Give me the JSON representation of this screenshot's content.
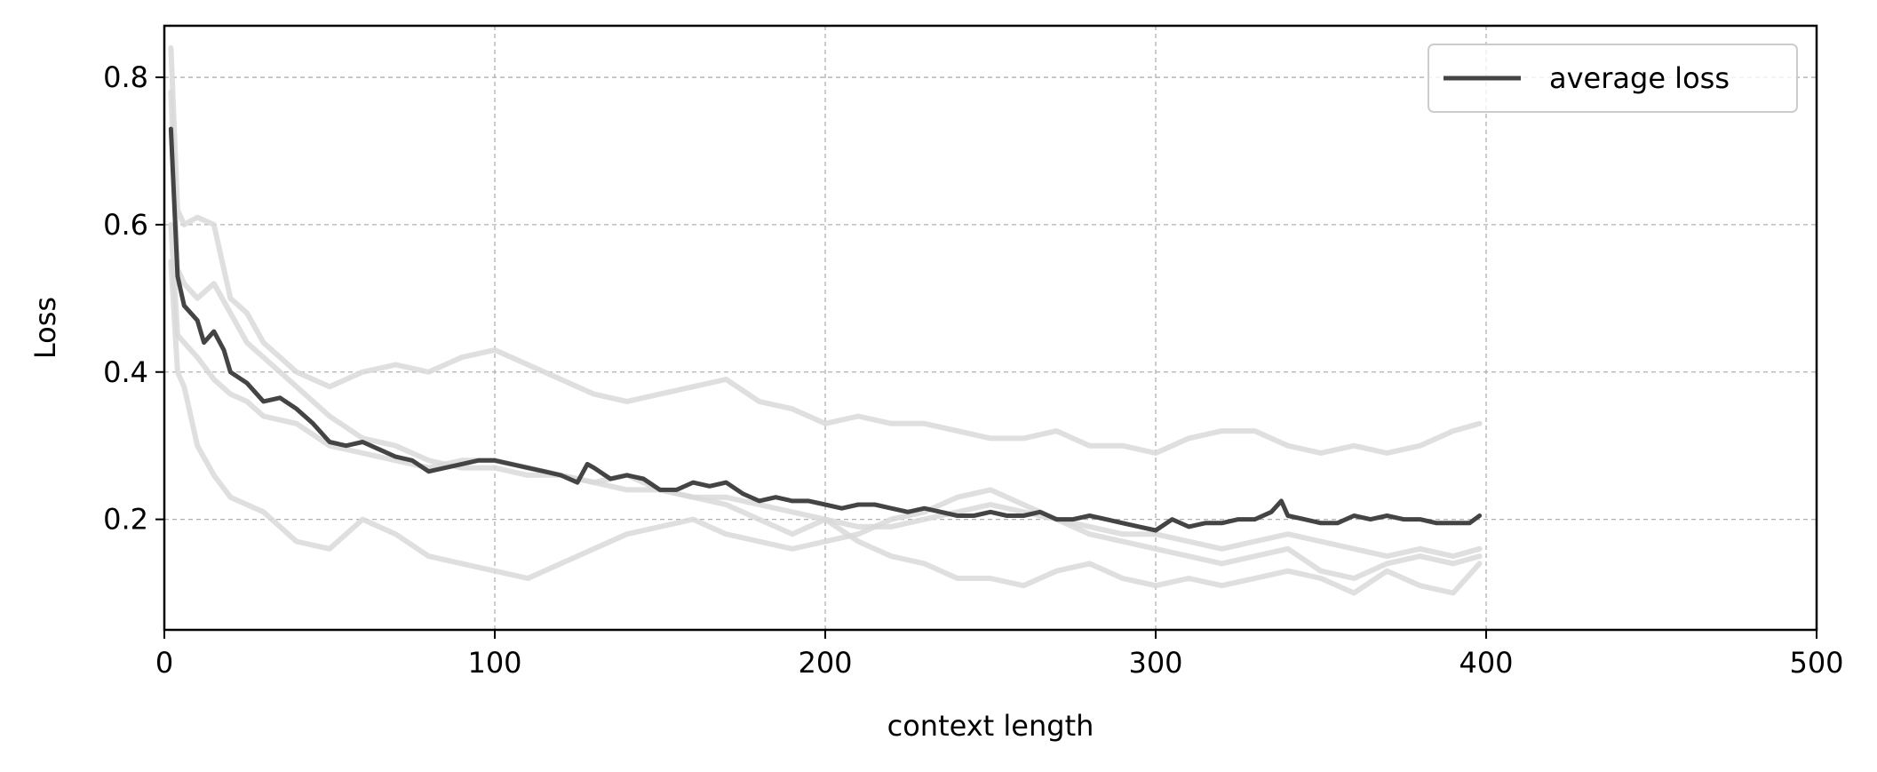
{
  "chart_data": {
    "type": "line",
    "title": "",
    "xlabel": "context length",
    "ylabel": "Loss",
    "xlim": [
      0,
      500
    ],
    "ylim": [
      0.05,
      0.87
    ],
    "x_ticks": [
      0,
      100,
      200,
      300,
      400,
      500
    ],
    "y_ticks": [
      0.2,
      0.4,
      0.6,
      0.8
    ],
    "x_tick_labels": [
      "0",
      "100",
      "200",
      "300",
      "400",
      "500"
    ],
    "y_tick_labels": [
      "0.2",
      "0.4",
      "0.6",
      "0.8"
    ],
    "grid": true,
    "legend": {
      "position": "top-right",
      "entries": [
        "average loss"
      ]
    },
    "colors": {
      "average": "#444444",
      "runs": "#d9d9d9",
      "grid": "#b0b0b0"
    },
    "series": [
      {
        "name": "average loss",
        "x": [
          2,
          4,
          6,
          8,
          10,
          12,
          15,
          18,
          20,
          25,
          30,
          35,
          40,
          45,
          50,
          55,
          60,
          65,
          70,
          75,
          80,
          85,
          90,
          95,
          100,
          105,
          110,
          115,
          120,
          125,
          128,
          130,
          135,
          140,
          145,
          150,
          155,
          160,
          165,
          170,
          175,
          180,
          185,
          190,
          195,
          200,
          205,
          210,
          215,
          220,
          225,
          230,
          235,
          240,
          245,
          250,
          255,
          260,
          265,
          270,
          275,
          280,
          285,
          290,
          295,
          300,
          305,
          310,
          315,
          320,
          325,
          330,
          335,
          338,
          340,
          345,
          350,
          355,
          360,
          365,
          370,
          375,
          380,
          385,
          390,
          395,
          398
        ],
        "values": [
          0.73,
          0.53,
          0.49,
          0.48,
          0.47,
          0.44,
          0.455,
          0.43,
          0.4,
          0.385,
          0.36,
          0.365,
          0.35,
          0.33,
          0.305,
          0.3,
          0.305,
          0.295,
          0.285,
          0.28,
          0.265,
          0.27,
          0.275,
          0.28,
          0.28,
          0.275,
          0.27,
          0.265,
          0.26,
          0.25,
          0.275,
          0.27,
          0.255,
          0.26,
          0.255,
          0.24,
          0.24,
          0.25,
          0.245,
          0.25,
          0.235,
          0.225,
          0.23,
          0.225,
          0.225,
          0.22,
          0.215,
          0.22,
          0.22,
          0.215,
          0.21,
          0.215,
          0.21,
          0.205,
          0.205,
          0.21,
          0.205,
          0.205,
          0.21,
          0.2,
          0.2,
          0.205,
          0.2,
          0.195,
          0.19,
          0.185,
          0.2,
          0.19,
          0.195,
          0.195,
          0.2,
          0.2,
          0.21,
          0.225,
          0.205,
          0.2,
          0.195,
          0.195,
          0.205,
          0.2,
          0.205,
          0.2,
          0.2,
          0.195,
          0.195,
          0.195,
          0.205
        ]
      },
      {
        "x": [
          2,
          4,
          6,
          10,
          15,
          20,
          25,
          30,
          40,
          50,
          60,
          70,
          80,
          90,
          100,
          110,
          120,
          130,
          140,
          150,
          160,
          170,
          180,
          190,
          200,
          210,
          220,
          230,
          240,
          250,
          260,
          270,
          280,
          290,
          300,
          310,
          320,
          330,
          340,
          350,
          360,
          370,
          380,
          390,
          398
        ],
        "values": [
          0.84,
          0.62,
          0.6,
          0.61,
          0.6,
          0.5,
          0.48,
          0.44,
          0.4,
          0.38,
          0.4,
          0.41,
          0.4,
          0.42,
          0.43,
          0.41,
          0.39,
          0.37,
          0.36,
          0.37,
          0.38,
          0.39,
          0.36,
          0.35,
          0.33,
          0.34,
          0.33,
          0.33,
          0.32,
          0.31,
          0.31,
          0.32,
          0.3,
          0.3,
          0.29,
          0.31,
          0.32,
          0.32,
          0.3,
          0.29,
          0.3,
          0.29,
          0.3,
          0.32,
          0.33
        ]
      },
      {
        "x": [
          2,
          4,
          6,
          10,
          15,
          20,
          25,
          30,
          40,
          50,
          60,
          70,
          80,
          90,
          100,
          110,
          120,
          130,
          140,
          150,
          160,
          170,
          180,
          190,
          200,
          210,
          220,
          230,
          240,
          250,
          260,
          270,
          280,
          290,
          300,
          310,
          320,
          330,
          340,
          350,
          360,
          370,
          380,
          390,
          398
        ],
        "values": [
          0.6,
          0.45,
          0.44,
          0.42,
          0.39,
          0.37,
          0.36,
          0.34,
          0.33,
          0.3,
          0.29,
          0.28,
          0.27,
          0.28,
          0.28,
          0.27,
          0.26,
          0.25,
          0.26,
          0.24,
          0.23,
          0.22,
          0.2,
          0.18,
          0.2,
          0.17,
          0.15,
          0.14,
          0.12,
          0.12,
          0.11,
          0.13,
          0.14,
          0.12,
          0.11,
          0.12,
          0.11,
          0.12,
          0.13,
          0.12,
          0.1,
          0.13,
          0.11,
          0.1,
          0.14
        ]
      },
      {
        "x": [
          2,
          4,
          6,
          10,
          15,
          20,
          25,
          30,
          40,
          50,
          60,
          70,
          80,
          90,
          100,
          110,
          120,
          130,
          140,
          150,
          160,
          170,
          180,
          190,
          200,
          210,
          220,
          230,
          240,
          250,
          260,
          270,
          280,
          290,
          300,
          310,
          320,
          330,
          340,
          350,
          360,
          370,
          380,
          390,
          398
        ],
        "values": [
          0.55,
          0.4,
          0.38,
          0.3,
          0.26,
          0.23,
          0.22,
          0.21,
          0.17,
          0.16,
          0.2,
          0.18,
          0.15,
          0.14,
          0.13,
          0.12,
          0.14,
          0.16,
          0.18,
          0.19,
          0.2,
          0.18,
          0.17,
          0.16,
          0.17,
          0.18,
          0.2,
          0.21,
          0.23,
          0.24,
          0.22,
          0.2,
          0.18,
          0.17,
          0.16,
          0.15,
          0.14,
          0.15,
          0.16,
          0.13,
          0.12,
          0.14,
          0.15,
          0.14,
          0.15
        ]
      },
      {
        "x": [
          2,
          4,
          6,
          10,
          15,
          20,
          25,
          30,
          40,
          50,
          60,
          70,
          80,
          90,
          100,
          110,
          120,
          130,
          140,
          150,
          160,
          170,
          180,
          190,
          200,
          210,
          220,
          230,
          240,
          250,
          260,
          270,
          280,
          290,
          300,
          310,
          320,
          330,
          340,
          350,
          360,
          370,
          380,
          390,
          398
        ],
        "values": [
          0.78,
          0.54,
          0.52,
          0.5,
          0.52,
          0.48,
          0.44,
          0.42,
          0.38,
          0.34,
          0.31,
          0.3,
          0.28,
          0.27,
          0.27,
          0.26,
          0.26,
          0.25,
          0.24,
          0.24,
          0.23,
          0.23,
          0.22,
          0.21,
          0.2,
          0.19,
          0.19,
          0.2,
          0.21,
          0.22,
          0.21,
          0.2,
          0.19,
          0.18,
          0.18,
          0.17,
          0.16,
          0.17,
          0.18,
          0.17,
          0.16,
          0.15,
          0.16,
          0.15,
          0.16
        ]
      }
    ]
  }
}
